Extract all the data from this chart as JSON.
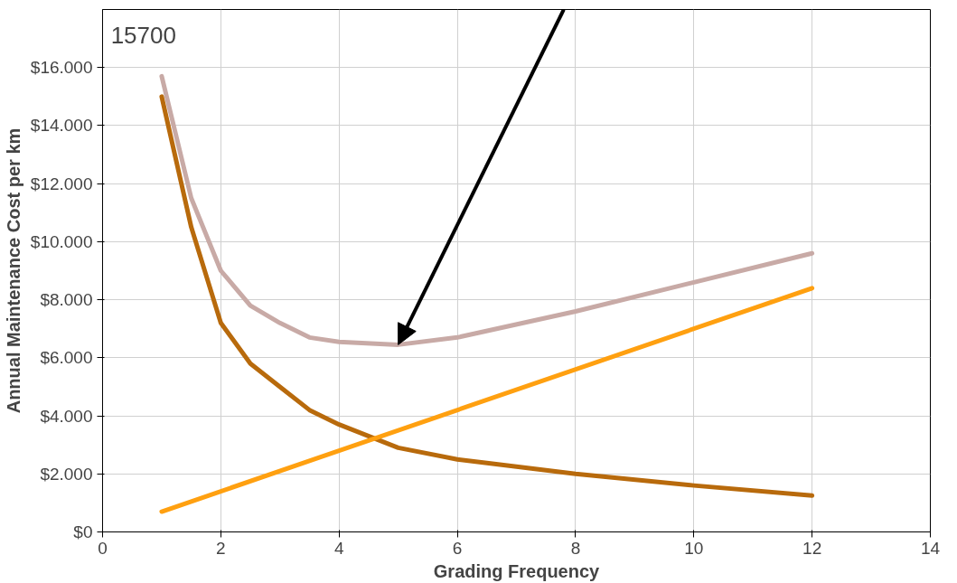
{
  "chart_data": {
    "type": "line",
    "xlabel": "Grading Frequency",
    "ylabel": "Annual Maintenance Cost per km",
    "xlim": [
      0,
      14
    ],
    "xticks": [
      0,
      2,
      4,
      6,
      8,
      10,
      12,
      14
    ],
    "ylim": [
      0,
      18000
    ],
    "yticks": [
      {
        "value": 0,
        "label": "$0"
      },
      {
        "value": 2000,
        "label": "$2.000"
      },
      {
        "value": 4000,
        "label": "$4.000"
      },
      {
        "value": 6000,
        "label": "$6.000"
      },
      {
        "value": 8000,
        "label": "$8.000"
      },
      {
        "value": 10000,
        "label": "$10.000"
      },
      {
        "value": 12000,
        "label": "$12.000"
      },
      {
        "value": 14000,
        "label": "$14.000"
      },
      {
        "value": 16000,
        "label": "$16.000"
      }
    ],
    "grid": true,
    "line_style": "solid",
    "series": [
      {
        "color": "#c8aaa6",
        "x": [
          1,
          1.5,
          2,
          2.5,
          3,
          3.5,
          4,
          5,
          6,
          8,
          10,
          12
        ],
        "values": [
          15700,
          11500,
          9000,
          7800,
          7200,
          6700,
          6550,
          6450,
          6700,
          7600,
          8600,
          9600
        ]
      },
      {
        "color": "#b86a0c",
        "x": [
          1,
          1.5,
          2,
          2.5,
          3,
          3.5,
          4,
          5,
          6,
          8,
          10,
          12
        ],
        "values": [
          15000,
          10500,
          7200,
          5800,
          5000,
          4200,
          3700,
          2900,
          2500,
          2000,
          1600,
          1250
        ]
      },
      {
        "color": "#ffa010",
        "x": [
          1,
          12
        ],
        "values": [
          700,
          8400
        ]
      }
    ],
    "annotations": [
      "15700"
    ]
  }
}
